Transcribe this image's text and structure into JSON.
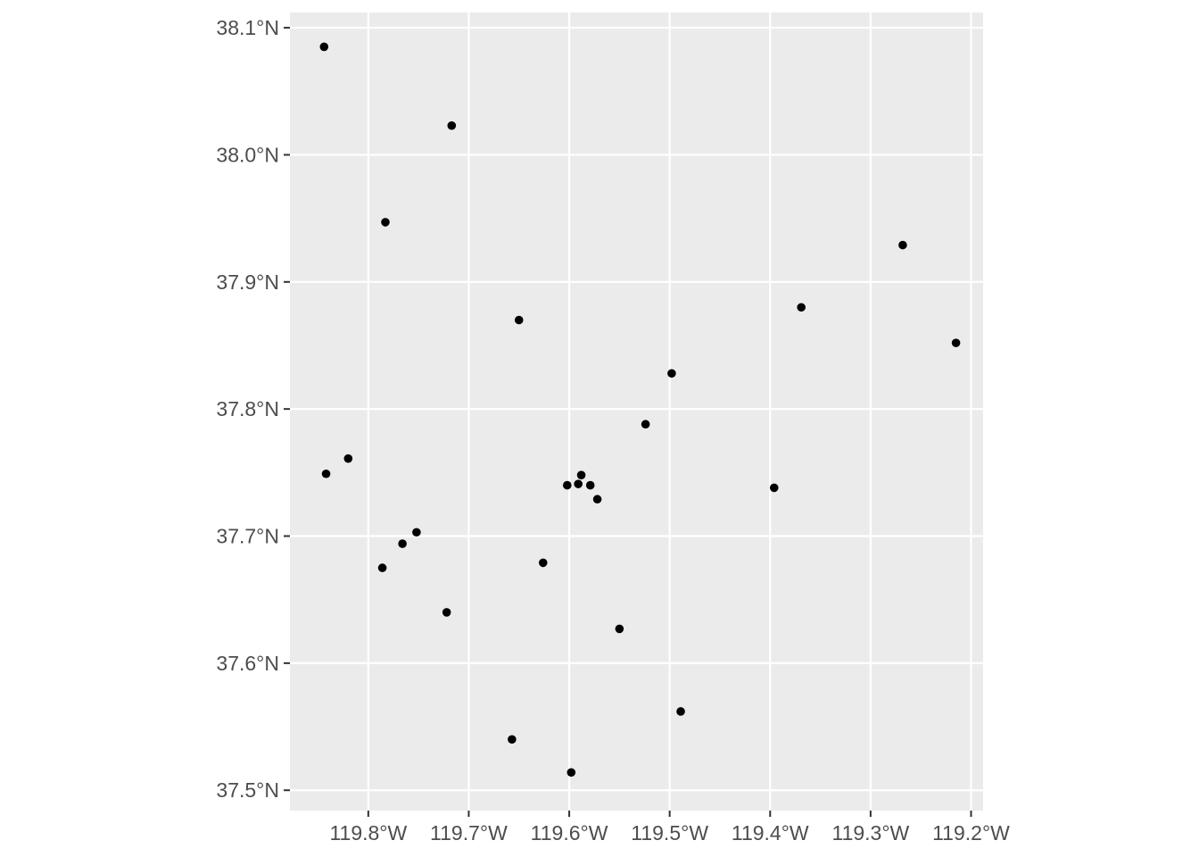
{
  "chart_data": {
    "type": "scatter",
    "x_tick_labels": [
      "119.8°W",
      "119.7°W",
      "119.6°W",
      "119.5°W",
      "119.4°W",
      "119.3°W",
      "119.2°W"
    ],
    "x_tick_values": [
      -119.8,
      -119.7,
      -119.6,
      -119.5,
      -119.4,
      -119.3,
      -119.2
    ],
    "y_tick_labels": [
      "37.5°N",
      "37.6°N",
      "37.7°N",
      "37.8°N",
      "37.9°N",
      "38.0°N",
      "38.1°N"
    ],
    "y_tick_values": [
      37.5,
      37.6,
      37.7,
      37.8,
      37.9,
      38.0,
      38.1
    ],
    "xlim": [
      -119.878,
      -119.188
    ],
    "ylim": [
      37.484,
      38.112
    ],
    "grid": true,
    "colors": {
      "panel_background": "#EBEBEB",
      "grid_line": "#FFFFFF",
      "point": "#000000",
      "tick_label": "#4D4D4D",
      "tick_mark": "#333333"
    },
    "points": [
      {
        "x": -119.844,
        "y": 38.085
      },
      {
        "x": -119.717,
        "y": 38.023
      },
      {
        "x": -119.783,
        "y": 37.947
      },
      {
        "x": -119.65,
        "y": 37.87
      },
      {
        "x": -119.268,
        "y": 37.929
      },
      {
        "x": -119.369,
        "y": 37.88
      },
      {
        "x": -119.215,
        "y": 37.852
      },
      {
        "x": -119.498,
        "y": 37.828
      },
      {
        "x": -119.524,
        "y": 37.788
      },
      {
        "x": -119.842,
        "y": 37.749
      },
      {
        "x": -119.82,
        "y": 37.761
      },
      {
        "x": -119.602,
        "y": 37.74
      },
      {
        "x": -119.591,
        "y": 37.741
      },
      {
        "x": -119.588,
        "y": 37.748
      },
      {
        "x": -119.579,
        "y": 37.74
      },
      {
        "x": -119.572,
        "y": 37.729
      },
      {
        "x": -119.396,
        "y": 37.738
      },
      {
        "x": -119.752,
        "y": 37.703
      },
      {
        "x": -119.766,
        "y": 37.694
      },
      {
        "x": -119.786,
        "y": 37.675
      },
      {
        "x": -119.626,
        "y": 37.679
      },
      {
        "x": -119.722,
        "y": 37.64
      },
      {
        "x": -119.55,
        "y": 37.627
      },
      {
        "x": -119.489,
        "y": 37.562
      },
      {
        "x": -119.657,
        "y": 37.54
      },
      {
        "x": -119.598,
        "y": 37.514
      }
    ]
  }
}
